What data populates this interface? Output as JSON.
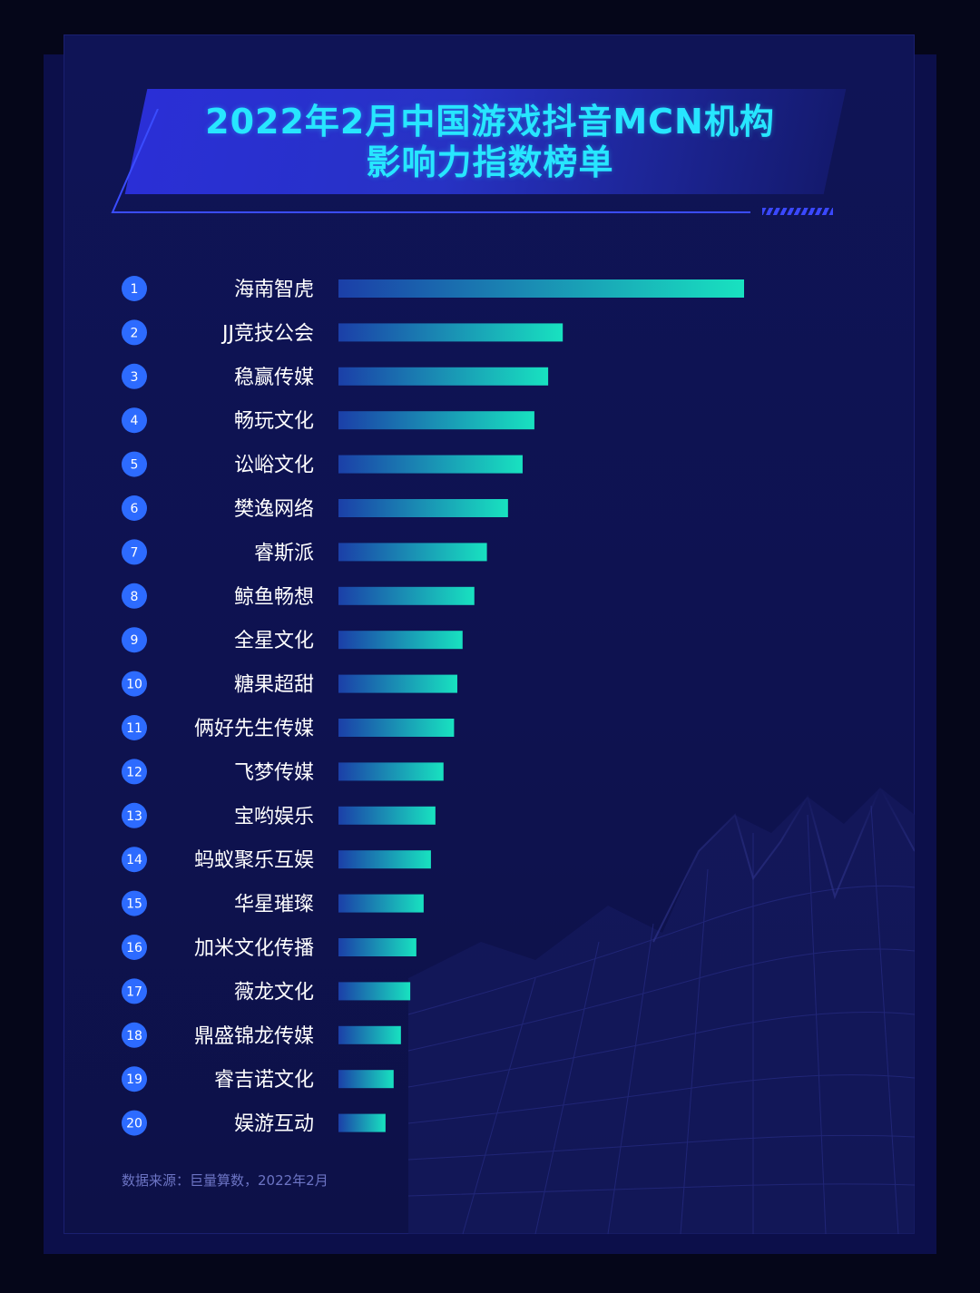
{
  "title_line1": "2022年2月中国游戏抖音MCN机构",
  "title_line2": "影响力指数榜单",
  "source": "数据来源：巨量算数，2022年2月",
  "colors": {
    "bar_start": "#1b3fa8",
    "bar_end": "#18e2c0",
    "rank_badge": "#2d6bff",
    "title_text": "#27e6ff"
  },
  "chart_data": {
    "type": "bar",
    "orientation": "horizontal",
    "title": "2022年2月中国游戏抖音MCN机构影响力指数榜单",
    "xlabel": "",
    "ylabel": "",
    "categories": [
      "海南智虎",
      "JJ竞技公会",
      "稳赢传媒",
      "畅玩文化",
      "讼峪文化",
      "樊逸网络",
      "睿斯派",
      "鲸鱼畅想",
      "全星文化",
      "糖果超甜",
      "俩好先生传媒",
      "飞梦传媒",
      "宝哟娱乐",
      "蚂蚁聚乐互娱",
      "华星璀璨",
      "加米文化传播",
      "薇龙文化",
      "鼎盛锦龙传媒",
      "睿吉诺文化",
      "娱游互动"
    ],
    "ranks": [
      "1",
      "2",
      "3",
      "4",
      "5",
      "6",
      "7",
      "8",
      "9",
      "10",
      "11",
      "12",
      "13",
      "14",
      "15",
      "16",
      "17",
      "18",
      "19",
      "20"
    ],
    "values": [
      100,
      55.3,
      51.7,
      48.3,
      45.4,
      41.8,
      36.6,
      33.5,
      30.6,
      29.3,
      28.5,
      25.9,
      23.9,
      22.8,
      21.0,
      19.2,
      17.7,
      15.4,
      13.6,
      11.6
    ],
    "xlim": [
      0,
      100
    ],
    "grid": false,
    "legend": "none"
  }
}
